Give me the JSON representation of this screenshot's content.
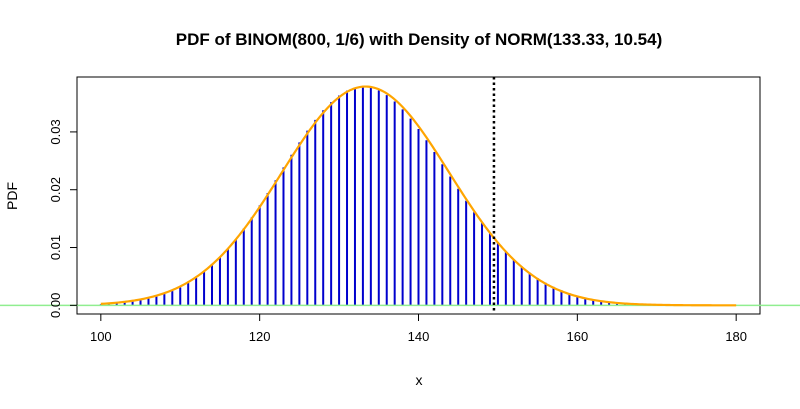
{
  "chart_data": {
    "type": "bar",
    "title": "PDF of BINOM(800, 1/6) with Density of NORM(133.33, 10.54)",
    "xlabel": "x",
    "ylabel": "PDF",
    "xlim": [
      97,
      183
    ],
    "ylim": [
      -0.0015,
      0.0395
    ],
    "x_ticks": [
      "100",
      "120",
      "140",
      "160",
      "180"
    ],
    "y_ticks": [
      "0.00",
      "0.01",
      "0.02",
      "0.03"
    ],
    "binomial": {
      "n": 800,
      "p": 0.1667,
      "x_start": 100,
      "x_end": 180
    },
    "normal_density": {
      "mean": 133.33,
      "sd": 10.54
    },
    "cutoff_x": 149.5,
    "colors": {
      "bars": "#0000cd",
      "density": "#ffa500",
      "baseline": "#90ee90",
      "cutoff": "#000000"
    }
  }
}
